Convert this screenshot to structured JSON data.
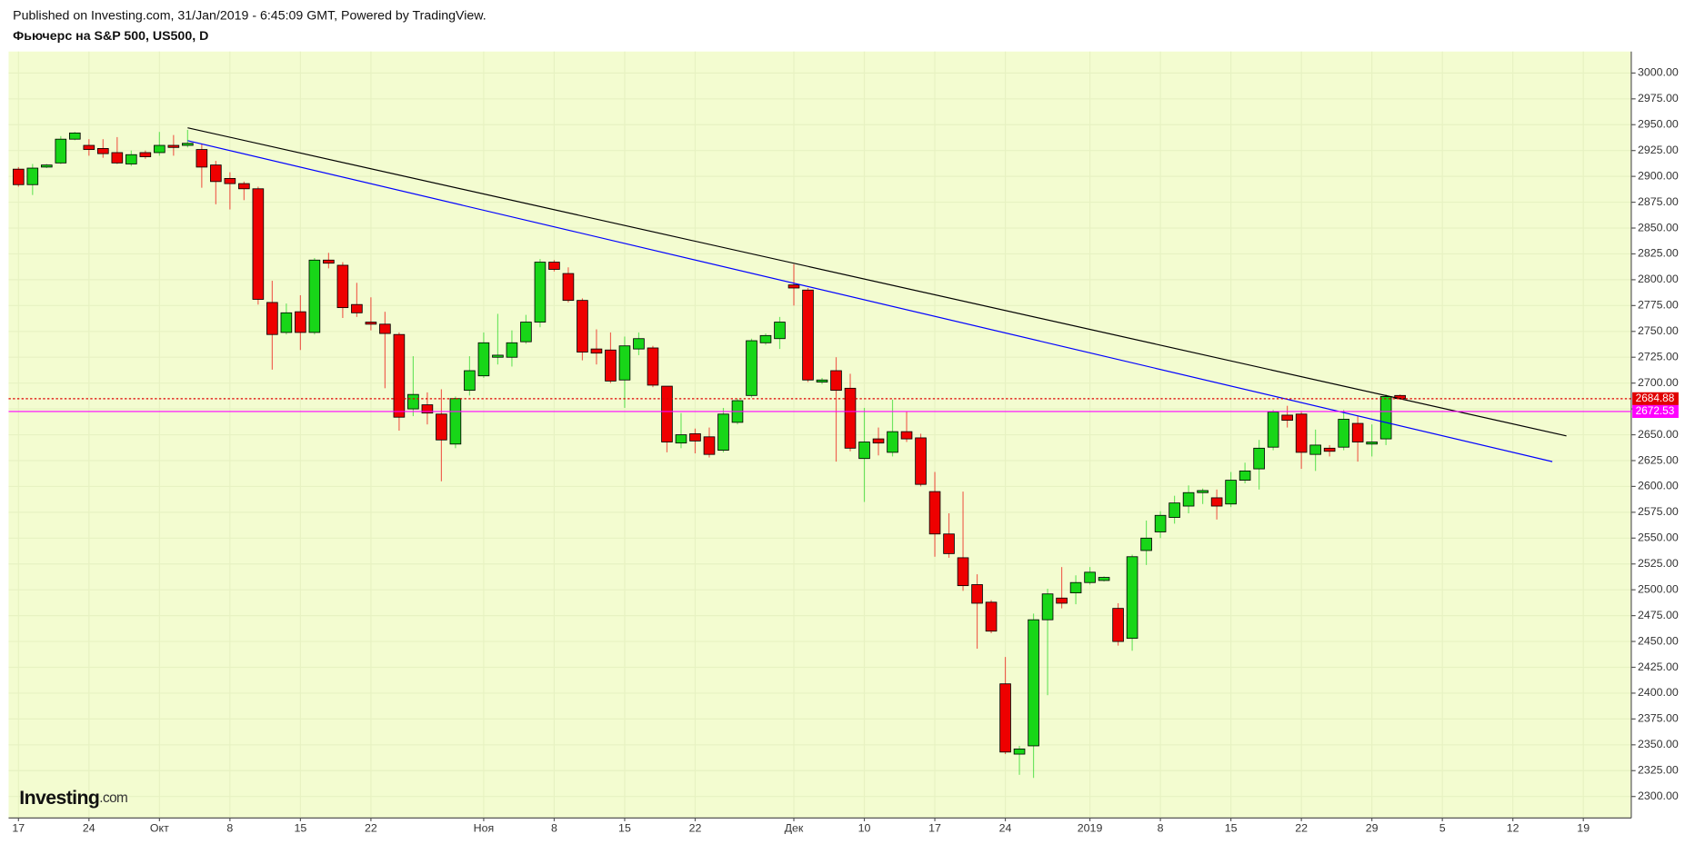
{
  "chart_data": {
    "type": "candlestick",
    "source": "Published on Investing.com, 31/Jan/2019 - 6:45:09 GMT, Powered by TradingView.",
    "title": "Фьючерс на S&P 500, US500, D",
    "logo": "Investing",
    "logo_suffix": ".com",
    "up_color": "#18d618",
    "down_color": "#ee0000",
    "background": "#f3fcd0",
    "grid": true,
    "open": [
      2907,
      2892,
      2909,
      2913,
      2936,
      2930,
      2927,
      2923,
      2912,
      2923,
      2923,
      2930,
      2930,
      2926,
      2911,
      2898,
      2893,
      2888,
      2778,
      2749,
      2769,
      2749,
      2819,
      2814,
      2776,
      2759,
      2757,
      2747,
      2675,
      2679,
      2670,
      2641,
      2693,
      2707,
      2725,
      2725,
      2740,
      2759,
      2817,
      2806,
      2780,
      2733,
      2732,
      2703,
      2733,
      2734,
      2697,
      2642,
      2651,
      2648,
      2635,
      2662,
      2688,
      2739,
      2743,
      2795,
      2790,
      2701,
      2712,
      2695,
      2627,
      2646,
      2633,
      2653,
      2647,
      2595,
      2554,
      2531,
      2505,
      2488,
      2409,
      2341,
      2349,
      2471,
      2492,
      2497,
      2507,
      2509,
      2482,
      2453,
      2538,
      2556,
      2570,
      2581,
      2594,
      2589,
      2583,
      2606,
      2617,
      2638,
      2669,
      2670,
      2631,
      2637,
      2638,
      2661,
      2641,
      2646,
      2688
    ],
    "high": [
      2909,
      2912,
      2912,
      2939,
      2943,
      2936,
      2936,
      2938,
      2925,
      2925,
      2943,
      2940,
      2945,
      2931,
      2915,
      2904,
      2895,
      2890,
      2799,
      2777,
      2785,
      2821,
      2826,
      2817,
      2797,
      2783,
      2769,
      2749,
      2726,
      2691,
      2694,
      2687,
      2726,
      2749,
      2767,
      2751,
      2766,
      2820,
      2819,
      2812,
      2782,
      2752,
      2749,
      2745,
      2749,
      2736,
      2697,
      2671,
      2656,
      2657,
      2676,
      2685,
      2743,
      2748,
      2764,
      2815,
      2792,
      2705,
      2725,
      2709,
      2676,
      2657,
      2684,
      2672,
      2651,
      2614,
      2574,
      2595,
      2515,
      2490,
      2435,
      2349,
      2477,
      2501,
      2522,
      2514,
      2522,
      2513,
      2487,
      2534,
      2567,
      2576,
      2591,
      2601,
      2598,
      2597,
      2614,
      2623,
      2645,
      2674,
      2678,
      2673,
      2655,
      2640,
      2674,
      2668,
      2660,
      2689,
      2689
    ],
    "low": [
      2890,
      2882,
      2908,
      2912,
      2935,
      2920,
      2918,
      2912,
      2910,
      2917,
      2920,
      2920,
      2928,
      2889,
      2873,
      2868,
      2877,
      2776,
      2713,
      2747,
      2732,
      2747,
      2811,
      2763,
      2764,
      2751,
      2695,
      2654,
      2668,
      2660,
      2605,
      2637,
      2688,
      2705,
      2718,
      2716,
      2738,
      2754,
      2808,
      2778,
      2722,
      2718,
      2700,
      2676,
      2727,
      2696,
      2633,
      2637,
      2632,
      2628,
      2633,
      2660,
      2686,
      2737,
      2733,
      2775,
      2701,
      2699,
      2624,
      2634,
      2585,
      2630,
      2629,
      2643,
      2600,
      2532,
      2531,
      2499,
      2443,
      2458,
      2341,
      2321,
      2318,
      2398,
      2482,
      2486,
      2505,
      2508,
      2446,
      2441,
      2524,
      2550,
      2564,
      2574,
      2583,
      2568,
      2580,
      2603,
      2597,
      2635,
      2657,
      2617,
      2615,
      2629,
      2635,
      2624,
      2629,
      2640,
      2684
    ],
    "close": [
      2892,
      2908,
      2911,
      2936,
      2942,
      2926,
      2922,
      2913,
      2921,
      2919,
      2930,
      2928,
      2932,
      2909,
      2895,
      2893,
      2888,
      2781,
      2747,
      2768,
      2749,
      2819,
      2816,
      2773,
      2768,
      2757,
      2748,
      2667,
      2689,
      2671,
      2645,
      2685,
      2712,
      2739,
      2727,
      2739,
      2759,
      2817,
      2810,
      2780,
      2730,
      2729,
      2702,
      2736,
      2743,
      2698,
      2643,
      2650,
      2644,
      2631,
      2670,
      2683,
      2741,
      2746,
      2759,
      2792,
      2703,
      2703,
      2693,
      2637,
      2643,
      2642,
      2653,
      2646,
      2602,
      2554,
      2535,
      2504,
      2487,
      2460,
      2343,
      2346,
      2471,
      2496,
      2487,
      2507,
      2517,
      2512,
      2450,
      2532,
      2550,
      2572,
      2584,
      2594,
      2596,
      2581,
      2606,
      2615,
      2637,
      2672,
      2664,
      2633,
      2640,
      2634,
      2665,
      2643,
      2643,
      2687,
      2685
    ],
    "xlim": [
      -0.7,
      114.4
    ],
    "xticks": [
      {
        "value": 0,
        "label": "17"
      },
      {
        "value": 5,
        "label": "24"
      },
      {
        "value": 10,
        "label": "Окт"
      },
      {
        "value": 15,
        "label": "8"
      },
      {
        "value": 20,
        "label": "15"
      },
      {
        "value": 25,
        "label": "22"
      },
      {
        "value": 33,
        "label": "Ноя"
      },
      {
        "value": 38,
        "label": "8"
      },
      {
        "value": 43,
        "label": "15"
      },
      {
        "value": 48,
        "label": "22"
      },
      {
        "value": 55,
        "label": "Дек"
      },
      {
        "value": 60,
        "label": "10"
      },
      {
        "value": 65,
        "label": "17"
      },
      {
        "value": 70,
        "label": "24"
      },
      {
        "value": 76,
        "label": "2019"
      },
      {
        "value": 81,
        "label": "8"
      },
      {
        "value": 86,
        "label": "15"
      },
      {
        "value": 91,
        "label": "22"
      },
      {
        "value": 96,
        "label": "29"
      },
      {
        "value": 101,
        "label": "5"
      },
      {
        "value": 106,
        "label": "12"
      },
      {
        "value": 111,
        "label": "19"
      }
    ],
    "ylim": [
      2279.2,
      3020.8
    ],
    "yticks": [
      {
        "value": 2300,
        "label": "2300.00"
      },
      {
        "value": 2325,
        "label": "2325.00"
      },
      {
        "value": 2350,
        "label": "2350.00"
      },
      {
        "value": 2375,
        "label": "2375.00"
      },
      {
        "value": 2400,
        "label": "2400.00"
      },
      {
        "value": 2425,
        "label": "2425.00"
      },
      {
        "value": 2450,
        "label": "2450.00"
      },
      {
        "value": 2475,
        "label": "2475.00"
      },
      {
        "value": 2500,
        "label": "2500.00"
      },
      {
        "value": 2525,
        "label": "2525.00"
      },
      {
        "value": 2550,
        "label": "2550.00"
      },
      {
        "value": 2575,
        "label": "2575.00"
      },
      {
        "value": 2600,
        "label": "2600.00"
      },
      {
        "value": 2625,
        "label": "2625.00"
      },
      {
        "value": 2650,
        "label": "2650.00"
      },
      {
        "value": 2675,
        "label": "2675.00"
      },
      {
        "value": 2700,
        "label": "2700.00"
      },
      {
        "value": 2725,
        "label": "2725.00"
      },
      {
        "value": 2750,
        "label": "2750.00"
      },
      {
        "value": 2775,
        "label": "2775.00"
      },
      {
        "value": 2800,
        "label": "2800.00"
      },
      {
        "value": 2825,
        "label": "2825.00"
      },
      {
        "value": 2850,
        "label": "2850.00"
      },
      {
        "value": 2875,
        "label": "2875.00"
      },
      {
        "value": 2900,
        "label": "2900.00"
      },
      {
        "value": 2925,
        "label": "2925.00"
      },
      {
        "value": 2950,
        "label": "2950.00"
      },
      {
        "value": 2975,
        "label": "2975.00"
      },
      {
        "value": 3000,
        "label": "3000.00"
      }
    ],
    "price_lines": [
      {
        "value": 2684.88,
        "color": "#e00000",
        "dashed": true
      },
      {
        "value": 2672.53,
        "color": "#ff00ff",
        "dashed": false
      }
    ],
    "trend_lines": [
      {
        "color": "#000000",
        "x": [
          12,
          109.8
        ],
        "y": [
          2947,
          2648.9
        ]
      },
      {
        "color": "#0000ff",
        "x": [
          12,
          108.8
        ],
        "y": [
          2934.6,
          2624.0
        ]
      }
    ]
  }
}
